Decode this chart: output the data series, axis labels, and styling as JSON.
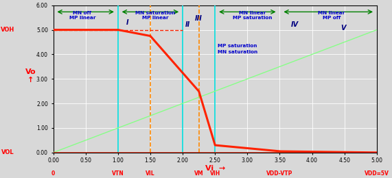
{
  "xlim": [
    0,
    5.0
  ],
  "ylim": [
    0,
    6.0
  ],
  "xlabel": "Vi",
  "ylabel": "Vo",
  "xticks": [
    0,
    0.5,
    1.0,
    1.5,
    2.0,
    2.5,
    3.0,
    3.5,
    4.0,
    4.5,
    5.0
  ],
  "yticks": [
    0,
    1.0,
    2.0,
    3.0,
    4.0,
    5.0,
    6.0
  ],
  "vtn": 1.0,
  "vil": 1.5,
  "vm": 2.25,
  "vih": 2.5,
  "vdd_vtp": 3.5,
  "vdd": 5.0,
  "voh": 5.0,
  "vol": 0.0,
  "bg_color": "#d8d8d8",
  "curve_color": "#ff2200",
  "diag_color": "#88ff88",
  "cyan_vline_color": "#00dddd",
  "orange_vline_color": "#ff8800",
  "region_label_color": "#0000cc",
  "axis_label_color": "#ff0000",
  "cyan_vlines": [
    1.0,
    2.0,
    2.5
  ],
  "orange_vlines": [
    1.5,
    2.25
  ]
}
